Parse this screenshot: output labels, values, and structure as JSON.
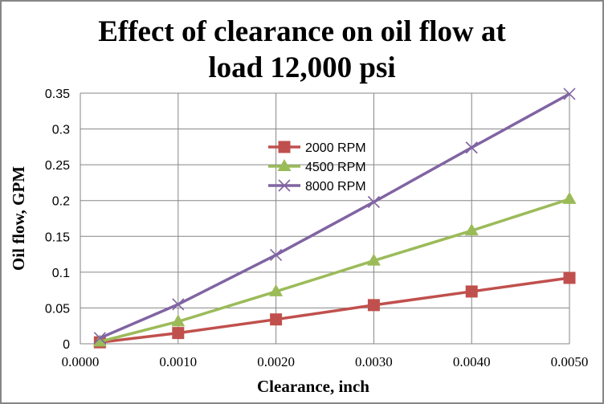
{
  "chart_data": {
    "type": "line",
    "title_line1": "Effect of clearance on oil flow at",
    "title_line2": "load 12,000 psi",
    "xlabel": "Clearance, inch",
    "ylabel": "Oil flow, GPM",
    "xlim": [
      0,
      0.005
    ],
    "ylim": [
      0,
      0.35
    ],
    "grid": true,
    "legend_position": "center-top",
    "xticks": [
      "0.0000",
      "0.0010",
      "0.0020",
      "0.0030",
      "0.0040",
      "0.0050"
    ],
    "xtick_values": [
      0,
      0.001,
      0.002,
      0.003,
      0.004,
      0.005
    ],
    "yticks": [
      "0",
      "0.05",
      "0.1",
      "0.15",
      "0.2",
      "0.25",
      "0.3",
      "0.35"
    ],
    "ytick_values": [
      0,
      0.05,
      0.1,
      0.15,
      0.2,
      0.25,
      0.3,
      0.35
    ],
    "x": [
      0.0002,
      0.001,
      0.002,
      0.003,
      0.004,
      0.005
    ],
    "series": [
      {
        "name": "2000 RPM",
        "color": "#C0504D",
        "marker": "square",
        "values": [
          0.002,
          0.015,
          0.034,
          0.054,
          0.073,
          0.092
        ]
      },
      {
        "name": "4500 RPM",
        "color": "#9BBB59",
        "marker": "triangle",
        "values": [
          0.003,
          0.031,
          0.073,
          0.116,
          0.158,
          0.202
        ]
      },
      {
        "name": "8000 RPM",
        "color": "#8064A2",
        "marker": "x",
        "values": [
          0.008,
          0.055,
          0.124,
          0.198,
          0.274,
          0.349
        ]
      }
    ]
  }
}
